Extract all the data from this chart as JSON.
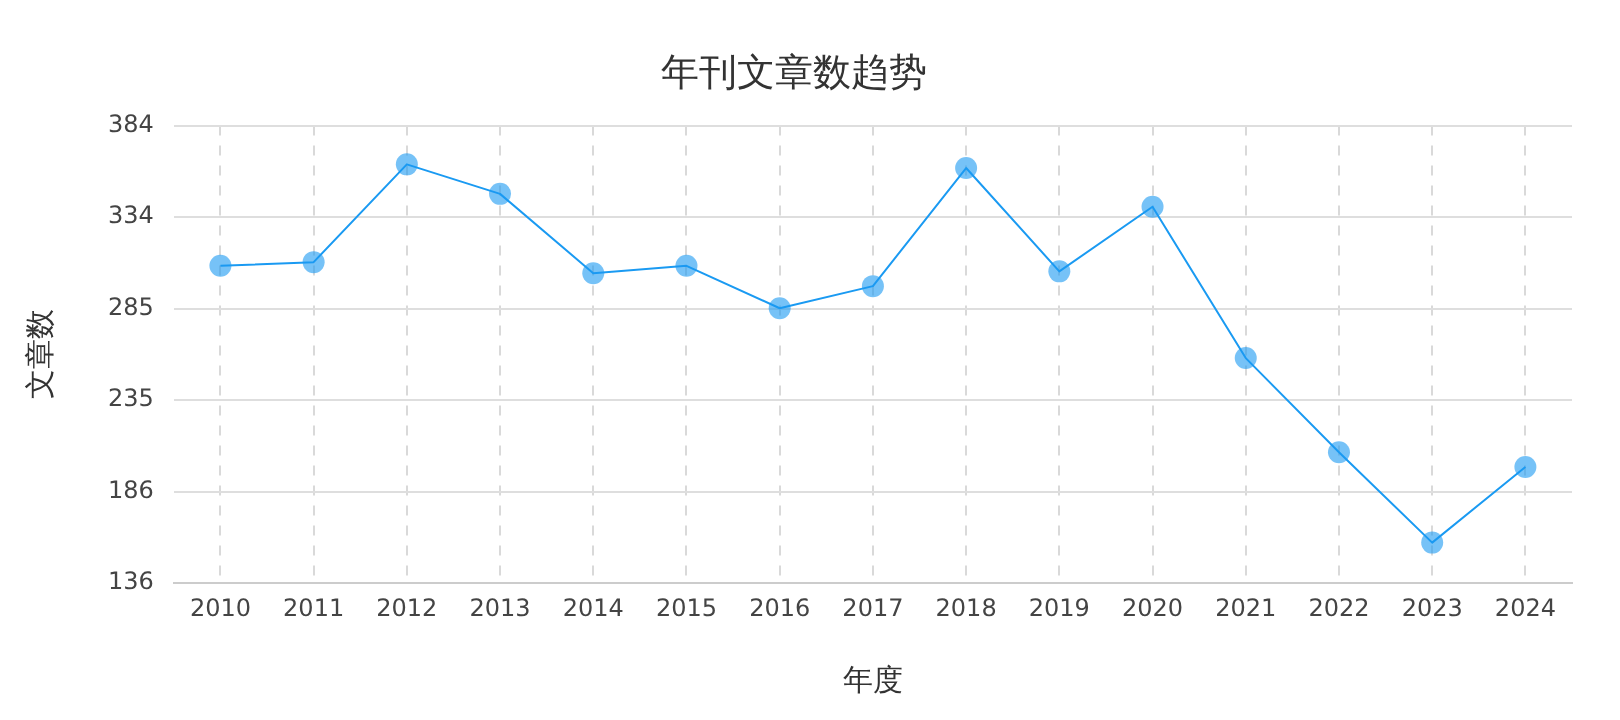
{
  "chart_data": {
    "type": "line",
    "title": "年刊文章数趋势",
    "xlabel": "年度",
    "ylabel": "文章数",
    "categories": [
      "2010",
      "2011",
      "2012",
      "2013",
      "2014",
      "2015",
      "2016",
      "2017",
      "2018",
      "2019",
      "2020",
      "2021",
      "2022",
      "2023",
      "2024"
    ],
    "series": [
      {
        "color": "#1a9af2",
        "values": [
          308,
          310,
          363,
          347,
          304,
          308,
          285,
          297,
          361,
          305,
          340,
          258,
          207,
          158,
          199
        ]
      }
    ],
    "ylim": [
      136,
      384
    ],
    "yticks": [
      136,
      {
        "value": 185.6,
        "label": "186"
      },
      {
        "value": 235.2,
        "label": "235"
      },
      {
        "value": 284.8,
        "label": "285"
      },
      {
        "value": 334.4,
        "label": "334"
      },
      384
    ],
    "grid": true,
    "legend": false,
    "marker": "circle",
    "line_style": "solid"
  }
}
